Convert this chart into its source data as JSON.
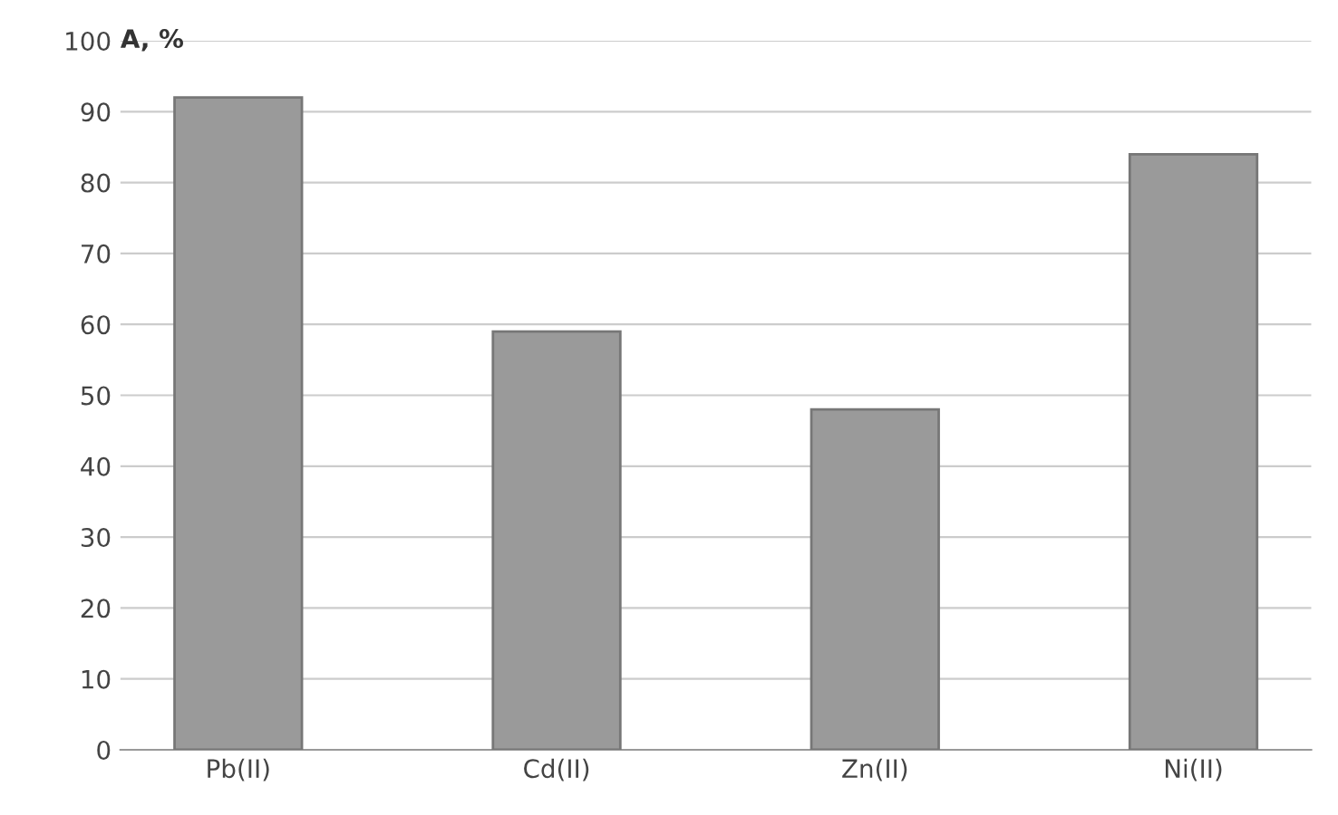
{
  "chart_data": {
    "type": "bar",
    "ylabel": "A, %",
    "categories": [
      "Pb(II)",
      "Cd(II)",
      "Zn(II)",
      "Ni(II)"
    ],
    "values": [
      92,
      59,
      48,
      84
    ],
    "color": "#9a9a9a",
    "ylim": [
      0,
      100
    ],
    "yticks": [
      0,
      10,
      20,
      30,
      40,
      50,
      60,
      70,
      80,
      90,
      100
    ],
    "grid": "y"
  }
}
